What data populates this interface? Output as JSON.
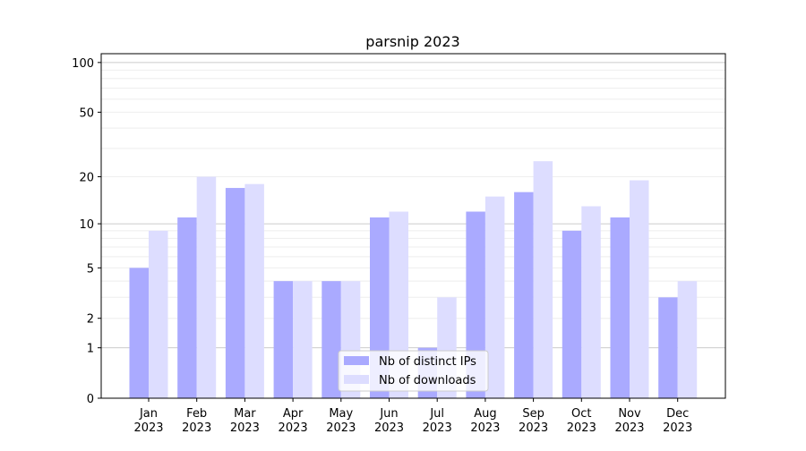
{
  "chart_data": {
    "type": "bar",
    "title": "parsnip 2023",
    "xlabel": "",
    "ylabel": "",
    "yscale": "log(1+y)",
    "ylim": [
      0,
      113
    ],
    "yticks": [
      0,
      1,
      2,
      5,
      10,
      20,
      50,
      100
    ],
    "grid": true,
    "legend_position": "lower-center",
    "categories": [
      "Jan\n2023",
      "Feb\n2023",
      "Mar\n2023",
      "Apr\n2023",
      "May\n2023",
      "Jun\n2023",
      "Jul\n2023",
      "Aug\n2023",
      "Sep\n2023",
      "Oct\n2023",
      "Nov\n2023",
      "Dec\n2023"
    ],
    "series": [
      {
        "name": "Nb of distinct IPs",
        "color": "#aaaaff",
        "values": [
          5,
          11,
          17,
          4,
          4,
          11,
          1,
          12,
          16,
          9,
          11,
          3
        ]
      },
      {
        "name": "Nb of downloads",
        "color": "#ddddff",
        "values": [
          9,
          20,
          18,
          4,
          4,
          12,
          3,
          15,
          25,
          13,
          19,
          4
        ]
      }
    ]
  }
}
